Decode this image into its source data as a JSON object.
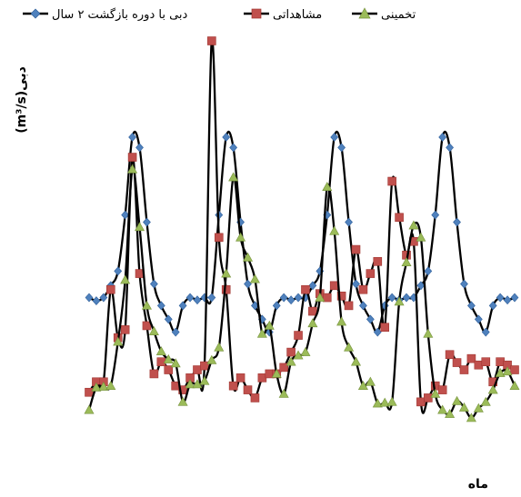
{
  "chart_data": {
    "type": "line",
    "title": "",
    "xlabel": "ماه",
    "ylabel": "(m³/s)دبی",
    "legend_position": "top",
    "grid": false,
    "x": [
      1,
      2,
      3,
      4,
      5,
      6,
      7,
      8,
      9,
      10,
      11,
      12,
      13,
      14,
      15,
      16,
      17,
      18,
      19,
      20,
      21,
      22,
      23,
      24,
      25,
      26,
      27,
      28,
      29,
      30,
      31,
      32,
      33,
      34,
      35,
      36,
      37,
      38,
      39,
      40,
      41,
      42,
      43,
      44,
      45,
      46,
      47,
      48,
      49,
      50,
      51,
      52,
      53,
      54,
      55,
      56,
      57,
      58,
      59,
      60
    ],
    "ylim": [
      0,
      470
    ],
    "series": [
      {
        "name": "دبی با دوره بازگشت ۲ سال",
        "color": "#1f4e9c",
        "marker": "diamond",
        "values": [
          150,
          146,
          150,
          165,
          183,
          253,
          350,
          337,
          244,
          167,
          140,
          123,
          107,
          140,
          150,
          147,
          150,
          150,
          253,
          350,
          337,
          244,
          167,
          140,
          123,
          107,
          140,
          150,
          147,
          150,
          150,
          165,
          183,
          253,
          350,
          337,
          244,
          167,
          140,
          123,
          107,
          140,
          150,
          147,
          150,
          150,
          165,
          183,
          253,
          350,
          337,
          244,
          167,
          140,
          123,
          107,
          140,
          150,
          147,
          150
        ]
      },
      {
        "name": "مشاهداتی",
        "color": "#c0504d",
        "marker": "square",
        "values": [
          32,
          45,
          45,
          160,
          100,
          110,
          325,
          180,
          115,
          55,
          70,
          60,
          40,
          35,
          50,
          60,
          65,
          470,
          225,
          160,
          40,
          50,
          35,
          25,
          50,
          55,
          55,
          63,
          82,
          103,
          160,
          133,
          155,
          150,
          165,
          152,
          140,
          210,
          160,
          180,
          195,
          113,
          295,
          250,
          203,
          220,
          20,
          25,
          40,
          35,
          79,
          69,
          60,
          74,
          66,
          70,
          45,
          70,
          66,
          60
        ]
      },
      {
        "name": "تخمینی",
        "color": "#9bbb59",
        "marker": "triangle",
        "values": [
          10,
          38,
          39,
          40,
          95,
          172,
          310,
          238,
          140,
          108,
          83,
          73,
          68,
          20,
          42,
          42,
          46,
          72,
          88,
          180,
          300,
          225,
          200,
          173,
          105,
          115,
          55,
          30,
          70,
          78,
          82,
          118,
          150,
          288,
          233,
          120,
          88,
          70,
          40,
          45,
          18,
          19,
          20,
          145,
          194,
          240,
          225,
          105,
          30,
          10,
          5,
          21,
          13,
          0,
          12,
          20,
          35,
          56,
          58,
          40
        ]
      }
    ]
  }
}
